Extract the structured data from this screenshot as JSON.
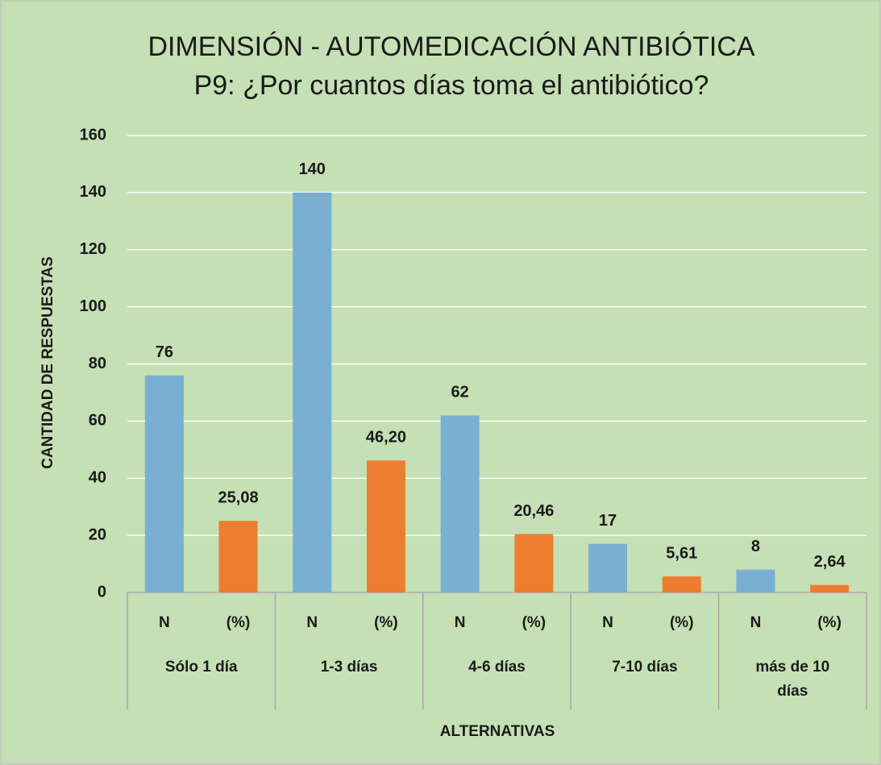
{
  "chart_data": {
    "type": "bar",
    "title": "DIMENSIÓN - AUTOMEDICACIÓN ANTIBIÓTICA",
    "subtitle": "P9: ¿Por cuantos días toma el antibiótico?",
    "y_label": "CANTIDAD DE RESPUESTAS",
    "x_label": "ALTERNATIVAS",
    "categories": [
      "N",
      "(%)",
      "N",
      "(%)",
      "N",
      "(%)",
      "N",
      "(%)",
      "N",
      "(%)"
    ],
    "groups": [
      "Sólo 1 día",
      "1-3  días",
      "4-6 días",
      "7-10 días",
      "más de 10 días"
    ],
    "values": [
      76,
      25.08,
      140,
      46.2,
      62,
      20.46,
      17,
      5.61,
      8,
      2.64
    ],
    "value_labels": [
      "76",
      "25,08",
      "140",
      "46,20",
      "62",
      "20,46",
      "17",
      "5,61",
      "8",
      "2,64"
    ],
    "colors": [
      "#7aafd2",
      "#ed7d31",
      "#7aafd2",
      "#ed7d31",
      "#7aafd2",
      "#ed7d31",
      "#7aafd2",
      "#ed7d31",
      "#7aafd2",
      "#ed7d31"
    ],
    "ylim": [
      0,
      160
    ],
    "yticks": [
      0,
      20,
      40,
      60,
      80,
      100,
      120,
      140,
      160
    ],
    "grid": true
  }
}
